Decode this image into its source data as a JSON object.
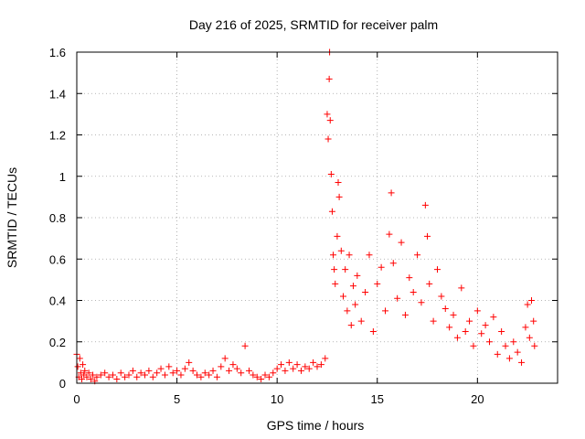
{
  "chart_data": {
    "type": "scatter",
    "title": "Day 216 of 2025, SRMTID for receiver palm",
    "xlabel": "GPS time / hours",
    "ylabel": "SRMTID / TECUs",
    "xlim": [
      0,
      24
    ],
    "ylim": [
      0,
      1.6
    ],
    "xticks": [
      0,
      5,
      10,
      15,
      20
    ],
    "yticks": [
      0,
      0.2,
      0.4,
      0.6,
      0.8,
      1,
      1.2,
      1.4,
      1.6
    ],
    "xtick_labels": [
      "0",
      "5",
      "10",
      "15",
      "20"
    ],
    "ytick_labels": [
      "0",
      "0.2",
      "0.4",
      "0.6",
      "0.8",
      "1",
      "1.2",
      "1.4",
      "1.6"
    ],
    "grid": true,
    "marker": "+",
    "series": [
      {
        "name": "SRMTID",
        "color": "#ff0000",
        "points": [
          [
            0.0,
            0.14
          ],
          [
            0.05,
            0.08
          ],
          [
            0.1,
            0.03
          ],
          [
            0.15,
            0.12
          ],
          [
            0.2,
            0.05
          ],
          [
            0.25,
            0.02
          ],
          [
            0.3,
            0.09
          ],
          [
            0.35,
            0.04
          ],
          [
            0.4,
            0.06
          ],
          [
            0.5,
            0.03
          ],
          [
            0.6,
            0.05
          ],
          [
            0.7,
            0.02
          ],
          [
            0.8,
            0.04
          ],
          [
            0.9,
            0.01
          ],
          [
            1.0,
            0.03
          ],
          [
            1.2,
            0.04
          ],
          [
            1.4,
            0.05
          ],
          [
            1.6,
            0.03
          ],
          [
            1.8,
            0.04
          ],
          [
            2.0,
            0.02
          ],
          [
            2.2,
            0.05
          ],
          [
            2.4,
            0.03
          ],
          [
            2.6,
            0.04
          ],
          [
            2.8,
            0.06
          ],
          [
            3.0,
            0.03
          ],
          [
            3.2,
            0.05
          ],
          [
            3.4,
            0.04
          ],
          [
            3.6,
            0.06
          ],
          [
            3.8,
            0.03
          ],
          [
            4.0,
            0.05
          ],
          [
            4.2,
            0.07
          ],
          [
            4.4,
            0.04
          ],
          [
            4.6,
            0.08
          ],
          [
            4.8,
            0.05
          ],
          [
            5.0,
            0.06
          ],
          [
            5.2,
            0.04
          ],
          [
            5.4,
            0.07
          ],
          [
            5.6,
            0.1
          ],
          [
            5.8,
            0.06
          ],
          [
            6.0,
            0.04
          ],
          [
            6.2,
            0.03
          ],
          [
            6.4,
            0.05
          ],
          [
            6.6,
            0.04
          ],
          [
            6.8,
            0.06
          ],
          [
            7.0,
            0.03
          ],
          [
            7.2,
            0.08
          ],
          [
            7.4,
            0.12
          ],
          [
            7.6,
            0.06
          ],
          [
            7.8,
            0.09
          ],
          [
            8.0,
            0.07
          ],
          [
            8.2,
            0.05
          ],
          [
            8.4,
            0.18
          ],
          [
            8.6,
            0.06
          ],
          [
            8.8,
            0.04
          ],
          [
            9.0,
            0.03
          ],
          [
            9.2,
            0.02
          ],
          [
            9.4,
            0.04
          ],
          [
            9.6,
            0.03
          ],
          [
            9.8,
            0.05
          ],
          [
            10.0,
            0.07
          ],
          [
            10.2,
            0.09
          ],
          [
            10.4,
            0.06
          ],
          [
            10.6,
            0.1
          ],
          [
            10.8,
            0.07
          ],
          [
            11.0,
            0.09
          ],
          [
            11.2,
            0.06
          ],
          [
            11.4,
            0.08
          ],
          [
            11.6,
            0.07
          ],
          [
            11.8,
            0.1
          ],
          [
            12.0,
            0.08
          ],
          [
            12.2,
            0.09
          ],
          [
            12.4,
            0.12
          ],
          [
            12.5,
            1.3
          ],
          [
            12.55,
            1.18
          ],
          [
            12.6,
            1.47
          ],
          [
            12.62,
            1.6
          ],
          [
            12.65,
            1.27
          ],
          [
            12.7,
            1.01
          ],
          [
            12.75,
            0.83
          ],
          [
            12.8,
            0.62
          ],
          [
            12.85,
            0.55
          ],
          [
            12.9,
            0.48
          ],
          [
            13.0,
            0.71
          ],
          [
            13.05,
            0.97
          ],
          [
            13.1,
            0.9
          ],
          [
            13.2,
            0.64
          ],
          [
            13.3,
            0.42
          ],
          [
            13.4,
            0.55
          ],
          [
            13.5,
            0.35
          ],
          [
            13.6,
            0.62
          ],
          [
            13.7,
            0.28
          ],
          [
            13.8,
            0.47
          ],
          [
            13.9,
            0.38
          ],
          [
            14.0,
            0.52
          ],
          [
            14.2,
            0.3
          ],
          [
            14.4,
            0.44
          ],
          [
            14.6,
            0.62
          ],
          [
            14.8,
            0.25
          ],
          [
            15.0,
            0.48
          ],
          [
            15.2,
            0.56
          ],
          [
            15.4,
            0.35
          ],
          [
            15.6,
            0.72
          ],
          [
            15.7,
            0.92
          ],
          [
            15.8,
            0.58
          ],
          [
            16.0,
            0.41
          ],
          [
            16.2,
            0.68
          ],
          [
            16.4,
            0.33
          ],
          [
            16.6,
            0.51
          ],
          [
            16.8,
            0.44
          ],
          [
            17.0,
            0.62
          ],
          [
            17.2,
            0.39
          ],
          [
            17.4,
            0.86
          ],
          [
            17.5,
            0.71
          ],
          [
            17.6,
            0.48
          ],
          [
            17.8,
            0.3
          ],
          [
            18.0,
            0.55
          ],
          [
            18.2,
            0.42
          ],
          [
            18.4,
            0.36
          ],
          [
            18.6,
            0.27
          ],
          [
            18.8,
            0.33
          ],
          [
            19.0,
            0.22
          ],
          [
            19.2,
            0.46
          ],
          [
            19.4,
            0.25
          ],
          [
            19.6,
            0.3
          ],
          [
            19.8,
            0.18
          ],
          [
            20.0,
            0.35
          ],
          [
            20.2,
            0.24
          ],
          [
            20.4,
            0.28
          ],
          [
            20.6,
            0.2
          ],
          [
            20.8,
            0.32
          ],
          [
            21.0,
            0.14
          ],
          [
            21.2,
            0.25
          ],
          [
            21.4,
            0.18
          ],
          [
            21.6,
            0.12
          ],
          [
            21.8,
            0.2
          ],
          [
            22.0,
            0.15
          ],
          [
            22.2,
            0.1
          ],
          [
            22.4,
            0.27
          ],
          [
            22.5,
            0.38
          ],
          [
            22.6,
            0.22
          ],
          [
            22.7,
            0.4
          ],
          [
            22.8,
            0.3
          ],
          [
            22.85,
            0.18
          ]
        ]
      }
    ]
  }
}
